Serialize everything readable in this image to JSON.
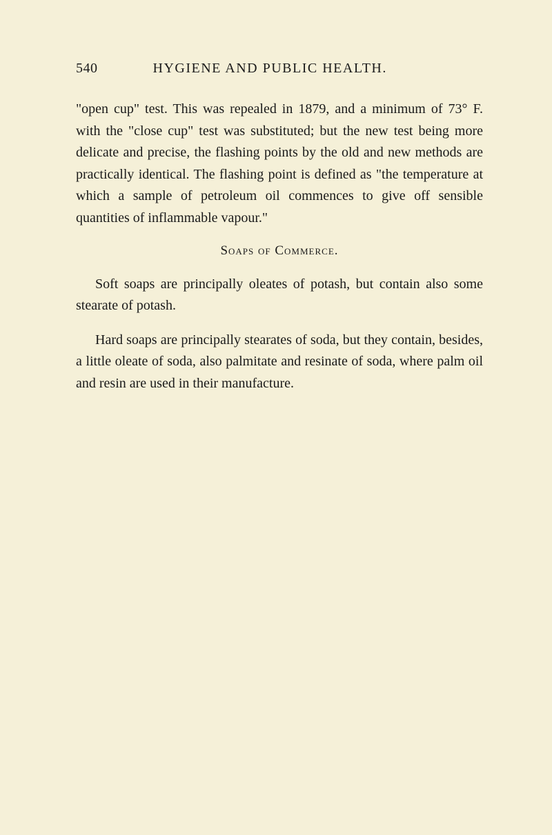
{
  "header": {
    "page_number": "540",
    "title": "HYGIENE AND PUBLIC HEALTH."
  },
  "paragraphs": {
    "p1": "\"open cup\" test. This was repealed in 1879, and a minimum of 73° F. with the \"close cup\" test was sub­stituted; but the new test being more delicate and precise, the flashing points by the old and new methods are practically identical. The flashing point is defined as \"the temperature at which a sample of petroleum oil commences to give off sensible quantities of inflammable vapour.\"",
    "heading": "Soaps of Commerce.",
    "p2": "Soft soaps are principally oleates of potash, but con­tain also some stearate of potash.",
    "p3": "Hard soaps are principally stearates of soda, but they contain, besides, a little oleate of soda, also palmitate and resinate of soda, where palm oil and resin are used in their manufacture."
  },
  "style": {
    "background_color": "#f5f0d8",
    "text_color": "#1a1a1a",
    "body_fontsize": 20,
    "header_fontsize": 20,
    "line_height": 1.58
  }
}
